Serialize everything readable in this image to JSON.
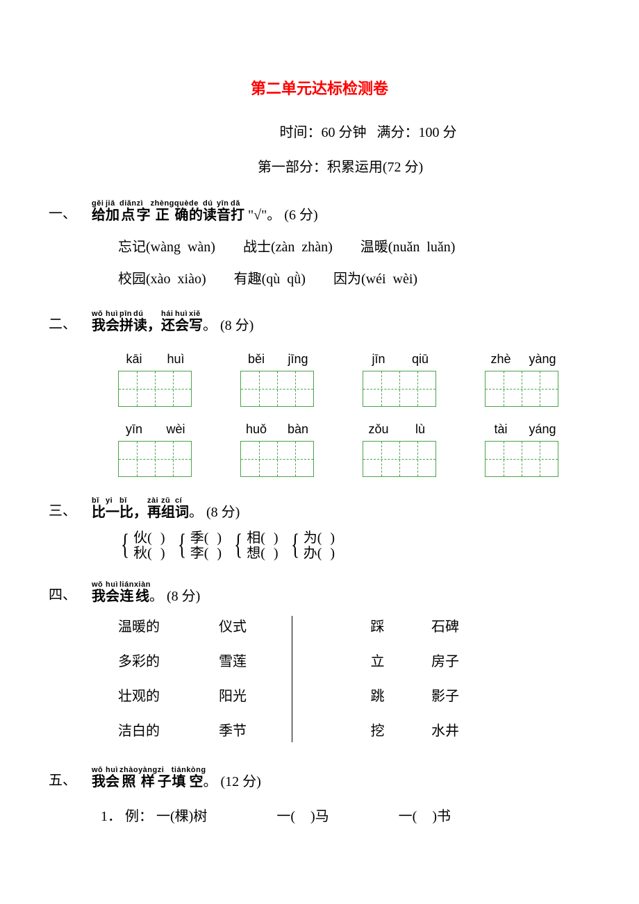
{
  "colors": {
    "title": "#ff0000",
    "box": "#4aa34a",
    "text": "#000000",
    "bg": "#ffffff"
  },
  "title": "第二单元达标检测卷",
  "meta": {
    "time_label": "时间：",
    "time_value": "60 分钟",
    "full_label": "满分：",
    "full_value": "100 分"
  },
  "part": "第一部分：积累运用(72 分)",
  "q1": {
    "num": "一、",
    "heading_pinyin": [
      "gěi",
      "jiā",
      "diǎn",
      "zì",
      "zhèng",
      "què",
      "de",
      "dú",
      "yīn",
      "dǎ"
    ],
    "heading_chars": [
      "给",
      "加",
      "点",
      "字",
      "正",
      "确",
      "的",
      "读",
      "音",
      "打"
    ],
    "tail": "\"√\"。",
    "points": "(6 分)",
    "row1": [
      {
        "label": "忘记",
        "a": "wàng",
        "b": "wàn"
      },
      {
        "label": "战士",
        "a": "zàn",
        "b": "zhàn"
      },
      {
        "label": "温暖",
        "a": "nuǎn",
        "b": "luǎn"
      }
    ],
    "row2": [
      {
        "label": "校园",
        "a": "xào",
        "b": "xiào"
      },
      {
        "label": "有趣",
        "a": "qù",
        "b": "qǜ"
      },
      {
        "label": "因为",
        "a": "wéi",
        "b": "wèi"
      }
    ]
  },
  "q2": {
    "num": "二、",
    "heading_pinyin": [
      "wǒ",
      "huì",
      "pīn",
      "dú",
      "",
      "hái",
      "huì",
      "xiě"
    ],
    "heading_chars": [
      "我",
      "会",
      "拼",
      "读",
      "，",
      "还",
      "会",
      "写"
    ],
    "tail": "。",
    "points": "(8 分)",
    "row1": [
      [
        "kāi",
        "huì"
      ],
      [
        "běi",
        "jīng"
      ],
      [
        "jīn",
        "qiū"
      ],
      [
        "zhè",
        "yàng"
      ]
    ],
    "row2": [
      [
        "yīn",
        "wèi"
      ],
      [
        "huǒ",
        "bàn"
      ],
      [
        "zǒu",
        "lù"
      ],
      [
        "tài",
        "yáng"
      ]
    ]
  },
  "q3": {
    "num": "三、",
    "heading_pinyin": [
      "bǐ",
      "yi",
      "bǐ",
      "",
      "zài",
      "zǔ",
      "cí"
    ],
    "heading_chars": [
      "比",
      "一",
      "比",
      "，",
      "再",
      "组",
      "词"
    ],
    "tail": "。",
    "points": "(8 分)",
    "pairs": [
      [
        "伙",
        "秋"
      ],
      [
        "季",
        "李"
      ],
      [
        "相",
        "想"
      ],
      [
        "为",
        "办"
      ]
    ]
  },
  "q4": {
    "num": "四、",
    "heading_pinyin": [
      "wǒ",
      "huì",
      "lián",
      "xiàn"
    ],
    "heading_chars": [
      "我",
      "会",
      "连",
      "线"
    ],
    "tail": "。",
    "points": "(8 分)",
    "left": [
      "温暖的",
      "多彩的",
      "壮观的",
      "洁白的"
    ],
    "mid": [
      "仪式",
      "雪莲",
      "阳光",
      "季节"
    ],
    "r1": [
      "踩",
      "立",
      "跳",
      "挖"
    ],
    "r2": [
      "石碑",
      "房子",
      "影子",
      "水井"
    ]
  },
  "q5": {
    "num": "五、",
    "heading_pinyin": [
      "wǒ",
      "huì",
      "zhào",
      "yàng",
      "zi",
      "tián",
      "kòng"
    ],
    "heading_chars": [
      "我",
      "会",
      "照",
      "样",
      "子",
      "填",
      "空"
    ],
    "tail": "。",
    "points": "(12 分)",
    "item": {
      "idx": "1．",
      "label": "例：",
      "example": "一(棵)树",
      "b": "马",
      "c": "书"
    }
  }
}
